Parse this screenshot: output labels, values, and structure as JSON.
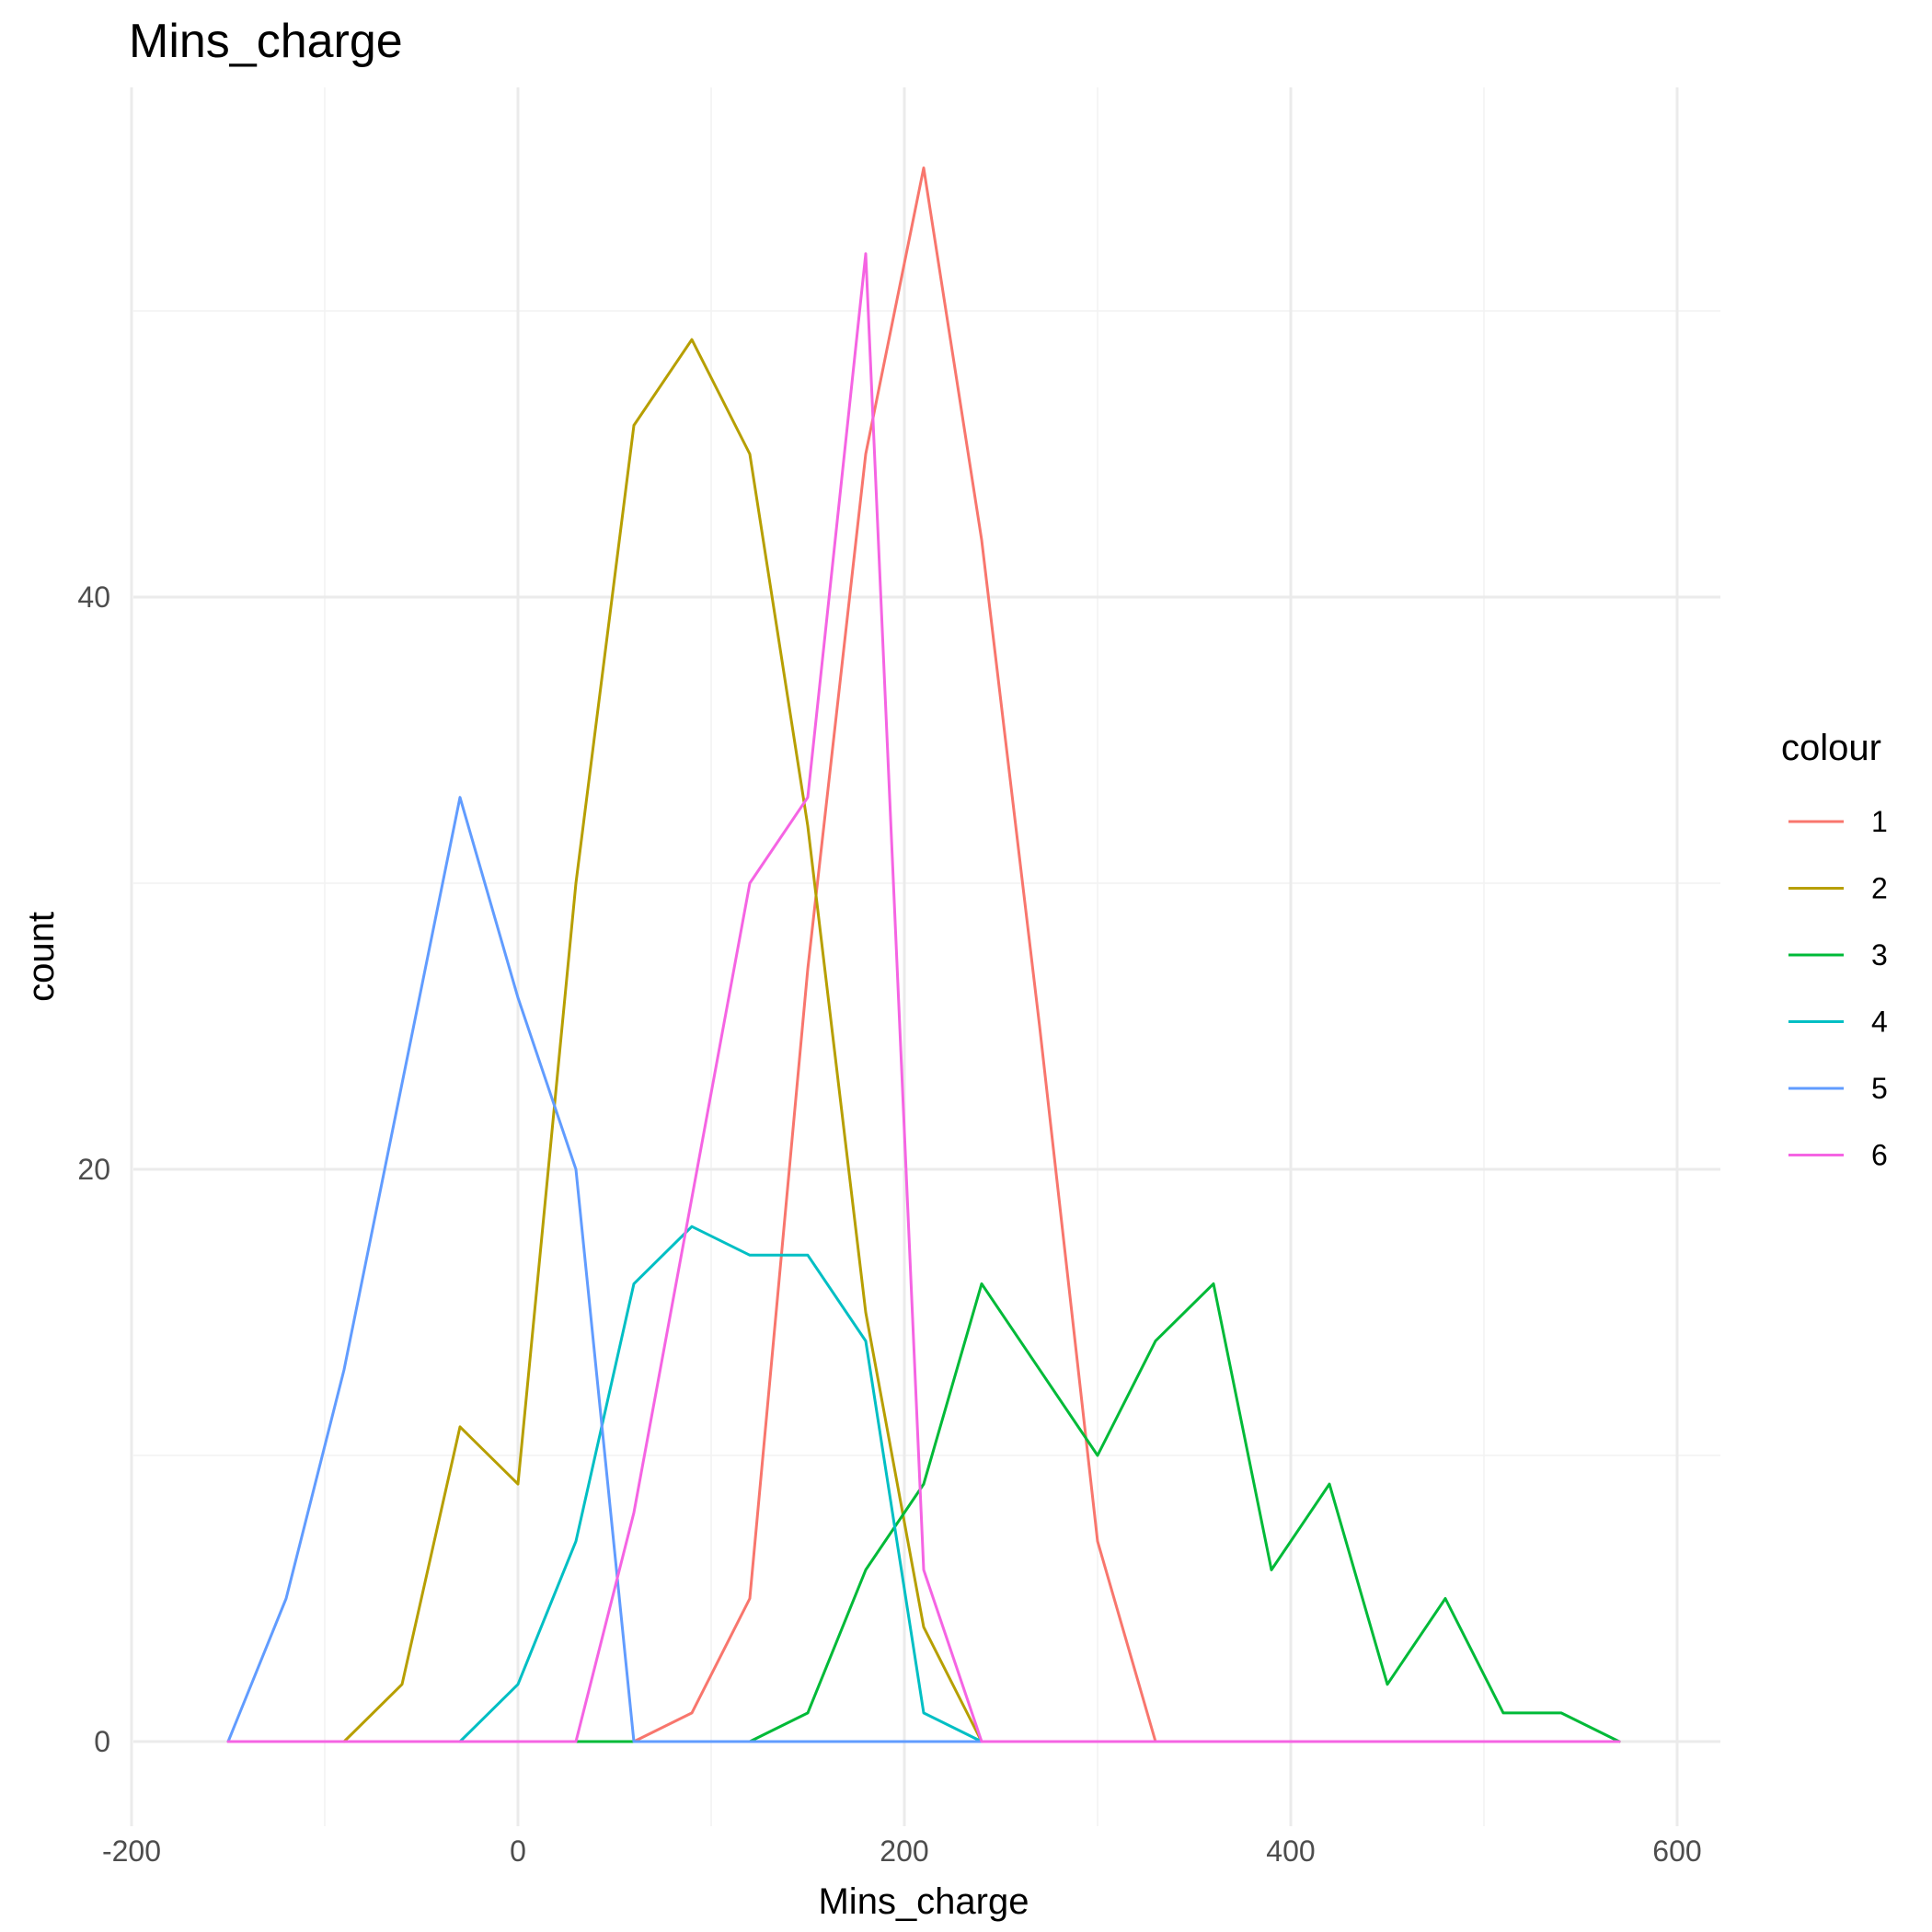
{
  "chart_data": {
    "type": "line",
    "title": "Mins_charge",
    "xlabel": "Mins_charge",
    "ylabel": "count",
    "xlim": [
      -200,
      620
    ],
    "ylim": [
      -4.5,
      58
    ],
    "x_ticks": [
      -200,
      0,
      200,
      400,
      600
    ],
    "y_ticks": [
      0,
      20,
      40
    ],
    "x_tick_labels": [
      "-200",
      "0",
      "200",
      "400",
      "600"
    ],
    "y_tick_labels": [
      "0",
      "20",
      "40"
    ],
    "grid": true,
    "legend": {
      "title": "colour",
      "position": "right"
    },
    "series": [
      {
        "name": "1",
        "color": "#F8766D",
        "x": [
          60,
          90,
          120,
          150,
          180,
          210,
          240,
          270,
          300,
          330,
          360,
          390,
          420,
          450,
          480,
          510,
          540,
          570
        ],
        "y": [
          0,
          1,
          5,
          27,
          45,
          55,
          42,
          25,
          7,
          0,
          0,
          0,
          0,
          0,
          0,
          0,
          0,
          0
        ]
      },
      {
        "name": "2",
        "color": "#B79F00",
        "x": [
          -90,
          -60,
          -30,
          0,
          30,
          60,
          90,
          120,
          150,
          180,
          210,
          240,
          270,
          300,
          330,
          360,
          390,
          420,
          450,
          480,
          510,
          540,
          570
        ],
        "y": [
          0,
          2,
          11,
          9,
          30,
          46,
          49,
          45,
          32,
          15,
          4,
          0,
          0,
          0,
          0,
          0,
          0,
          0,
          0,
          0,
          0,
          0,
          0
        ]
      },
      {
        "name": "3",
        "color": "#00BA38",
        "x": [
          30,
          60,
          90,
          120,
          150,
          180,
          210,
          240,
          270,
          300,
          330,
          360,
          390,
          420,
          450,
          480,
          510,
          540,
          570
        ],
        "y": [
          0,
          0,
          0,
          0,
          1,
          6,
          9,
          16,
          13,
          10,
          14,
          16,
          6,
          9,
          2,
          5,
          1,
          1,
          0
        ]
      },
      {
        "name": "4",
        "color": "#00BFC4",
        "x": [
          -30,
          0,
          30,
          60,
          90,
          120,
          150,
          180,
          210,
          240
        ],
        "y": [
          0,
          2,
          7,
          16,
          18,
          17,
          17,
          14,
          1,
          0
        ]
      },
      {
        "name": "5",
        "color": "#619CFF",
        "x": [
          -150,
          -120,
          -90,
          -60,
          -30,
          0,
          30,
          60,
          90,
          120,
          150,
          180,
          210,
          240
        ],
        "y": [
          0,
          5,
          13,
          23,
          33,
          26,
          20,
          0,
          0,
          0,
          0,
          0,
          0,
          0
        ]
      },
      {
        "name": "6",
        "color": "#F564E3",
        "x": [
          -150,
          -120,
          -90,
          -60,
          -30,
          0,
          30,
          60,
          90,
          120,
          150,
          180,
          210,
          240,
          270,
          300,
          330,
          360,
          390,
          420,
          450,
          480,
          510,
          540,
          570
        ],
        "y": [
          0,
          0,
          0,
          0,
          0,
          0,
          0,
          8,
          19,
          30,
          33,
          52,
          6,
          0,
          0,
          0,
          0,
          0,
          0,
          0,
          0,
          0,
          0,
          0,
          0
        ]
      }
    ]
  }
}
